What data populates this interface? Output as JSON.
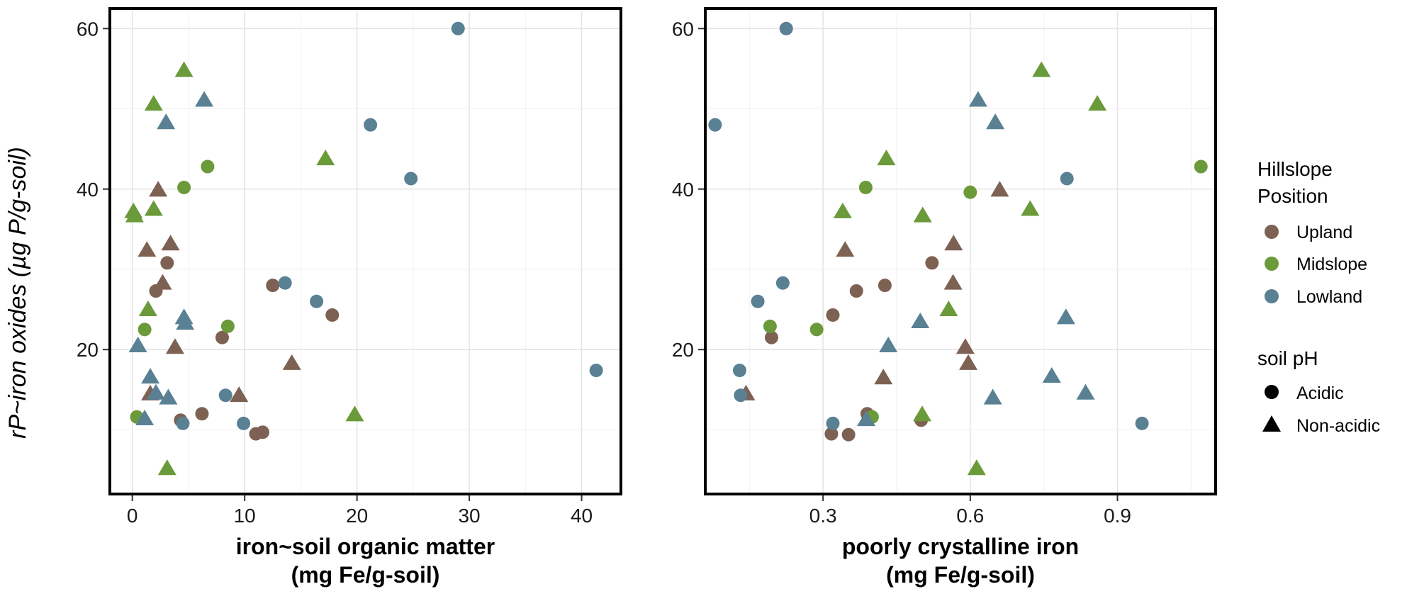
{
  "y_title": "rP~iron oxides (µg P/g-soil)",
  "legend": {
    "hillslope_title_line1": "Hillslope",
    "hillslope_title_line2": "Position",
    "positions": [
      {
        "label": "Upland",
        "color": "#7d6152"
      },
      {
        "label": "Midslope",
        "color": "#6a9a3a"
      },
      {
        "label": "Lowland",
        "color": "#5a8094"
      }
    ],
    "ph_title": "soil pH",
    "shapes": [
      {
        "label": "Acidic",
        "shape": "circle"
      },
      {
        "label": "Non-acidic",
        "shape": "triangle"
      }
    ]
  },
  "chart_data": [
    {
      "type": "scatter",
      "xlabel_line1": "iron~soil organic matter",
      "xlabel_line2": "(mg Fe/g-soil)",
      "ylabel": "rP~iron oxides (µg P/g-soil)",
      "xlim": [
        -2,
        43.5
      ],
      "ylim": [
        2,
        62.5
      ],
      "x_ticks": [
        0,
        10,
        20,
        30,
        40
      ],
      "x_tick_labels": [
        "0",
        "10",
        "20",
        "30",
        "40"
      ],
      "y_ticks": [
        20,
        40,
        60
      ],
      "y_tick_labels": [
        "20",
        "40",
        "60"
      ],
      "grid": true,
      "series": [
        {
          "name": "Upland",
          "ph": "Acidic",
          "color": "#7d6152",
          "shape": "circle",
          "points": [
            [
              3.1,
              30.8
            ],
            [
              2.1,
              27.3
            ],
            [
              8.0,
              21.5
            ],
            [
              12.5,
              28.0
            ],
            [
              17.8,
              24.3
            ],
            [
              4.3,
              11.2
            ],
            [
              6.2,
              12.0
            ],
            [
              11.0,
              9.5
            ],
            [
              11.6,
              9.7
            ]
          ]
        },
        {
          "name": "Upland",
          "ph": "Non-acidic",
          "color": "#7d6152",
          "shape": "triangle",
          "points": [
            [
              2.3,
              39.9
            ],
            [
              1.3,
              32.4
            ],
            [
              3.4,
              33.2
            ],
            [
              2.7,
              28.3
            ],
            [
              3.8,
              20.3
            ],
            [
              14.2,
              18.3
            ],
            [
              9.5,
              14.3
            ],
            [
              1.6,
              14.5
            ]
          ]
        },
        {
          "name": "Midslope",
          "ph": "Acidic",
          "color": "#6a9a3a",
          "shape": "circle",
          "points": [
            [
              6.7,
              42.8
            ],
            [
              4.6,
              40.2
            ],
            [
              1.1,
              22.5
            ],
            [
              8.5,
              22.9
            ],
            [
              0.4,
              11.6
            ]
          ]
        },
        {
          "name": "Midslope",
          "ph": "Non-acidic",
          "color": "#6a9a3a",
          "shape": "triangle",
          "points": [
            [
              4.6,
              54.8
            ],
            [
              1.9,
              50.6
            ],
            [
              17.2,
              43.8
            ],
            [
              0.1,
              37.2
            ],
            [
              1.9,
              37.5
            ],
            [
              0.2,
              36.7
            ],
            [
              1.4,
              25.0
            ],
            [
              19.8,
              11.9
            ],
            [
              3.1,
              5.2
            ]
          ]
        },
        {
          "name": "Lowland",
          "ph": "Acidic",
          "color": "#5a8094",
          "shape": "circle",
          "points": [
            [
              29.0,
              60.0
            ],
            [
              21.2,
              48.0
            ],
            [
              24.8,
              41.3
            ],
            [
              13.6,
              28.3
            ],
            [
              16.4,
              26.0
            ],
            [
              41.3,
              17.4
            ],
            [
              8.3,
              14.3
            ],
            [
              9.9,
              10.8
            ],
            [
              4.5,
              10.8
            ]
          ]
        },
        {
          "name": "Lowland",
          "ph": "Non-acidic",
          "color": "#5a8094",
          "shape": "triangle",
          "points": [
            [
              6.4,
              51.1
            ],
            [
              3.0,
              48.3
            ],
            [
              4.6,
              24.0
            ],
            [
              4.7,
              23.3
            ],
            [
              0.5,
              20.5
            ],
            [
              1.6,
              16.6
            ],
            [
              2.1,
              14.6
            ],
            [
              3.2,
              14.0
            ],
            [
              1.1,
              11.4
            ]
          ]
        }
      ]
    },
    {
      "type": "scatter",
      "xlabel_line1": "poorly crystalline iron",
      "xlabel_line2": "(mg Fe/g-soil)",
      "ylabel": "rP~iron oxides (µg P/g-soil)",
      "xlim": [
        0.06,
        1.1
      ],
      "ylim": [
        2,
        62.5
      ],
      "x_ticks": [
        0.3,
        0.6,
        0.9
      ],
      "x_tick_labels": [
        "0.3",
        "0.6",
        "0.9"
      ],
      "y_ticks": [
        20,
        40,
        60
      ],
      "y_tick_labels": [
        "20",
        "40",
        "60"
      ],
      "grid": true,
      "series": [
        {
          "name": "Upland",
          "ph": "Acidic",
          "color": "#7d6152",
          "shape": "circle",
          "points": [
            [
              0.522,
              30.8
            ],
            [
              0.368,
              27.3
            ],
            [
              0.195,
              21.5
            ],
            [
              0.426,
              28.0
            ],
            [
              0.32,
              24.3
            ],
            [
              0.5,
              11.2
            ],
            [
              0.39,
              12.0
            ],
            [
              0.317,
              9.5
            ],
            [
              0.352,
              9.4
            ]
          ]
        },
        {
          "name": "Upland",
          "ph": "Non-acidic",
          "color": "#7d6152",
          "shape": "triangle",
          "points": [
            [
              0.66,
              39.9
            ],
            [
              0.345,
              32.4
            ],
            [
              0.566,
              33.2
            ],
            [
              0.565,
              28.3
            ],
            [
              0.59,
              20.3
            ],
            [
              0.596,
              18.3
            ],
            [
              0.423,
              16.5
            ],
            [
              0.143,
              14.5
            ]
          ]
        },
        {
          "name": "Midslope",
          "ph": "Acidic",
          "color": "#6a9a3a",
          "shape": "circle",
          "points": [
            [
              1.07,
              42.8
            ],
            [
              0.387,
              40.2
            ],
            [
              0.6,
              39.6
            ],
            [
              0.192,
              22.9
            ],
            [
              0.287,
              22.5
            ],
            [
              0.4,
              11.6
            ]
          ]
        },
        {
          "name": "Midslope",
          "ph": "Non-acidic",
          "color": "#6a9a3a",
          "shape": "triangle",
          "points": [
            [
              0.745,
              54.8
            ],
            [
              0.859,
              50.6
            ],
            [
              0.429,
              43.8
            ],
            [
              0.34,
              37.2
            ],
            [
              0.722,
              37.5
            ],
            [
              0.503,
              36.7
            ],
            [
              0.556,
              25.0
            ],
            [
              0.502,
              11.9
            ],
            [
              0.613,
              5.2
            ]
          ]
        },
        {
          "name": "Lowland",
          "ph": "Acidic",
          "color": "#5a8094",
          "shape": "circle",
          "points": [
            [
              0.225,
              60.0
            ],
            [
              0.08,
              48.0
            ],
            [
              0.797,
              41.3
            ],
            [
              0.218,
              28.3
            ],
            [
              0.167,
              26.0
            ],
            [
              0.13,
              17.4
            ],
            [
              0.132,
              14.3
            ],
            [
              0.32,
              10.8
            ],
            [
              0.95,
              10.8
            ]
          ]
        },
        {
          "name": "Lowland",
          "ph": "Non-acidic",
          "color": "#5a8094",
          "shape": "triangle",
          "points": [
            [
              0.616,
              51.1
            ],
            [
              0.651,
              48.3
            ],
            [
              0.795,
              24.0
            ],
            [
              0.498,
              23.5
            ],
            [
              0.433,
              20.5
            ],
            [
              0.766,
              16.7
            ],
            [
              0.835,
              14.6
            ],
            [
              0.646,
              14.0
            ],
            [
              0.388,
              11.3
            ]
          ]
        }
      ]
    }
  ]
}
